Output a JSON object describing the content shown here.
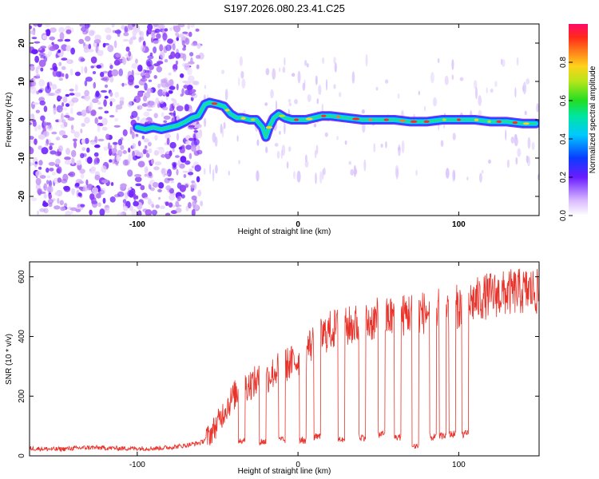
{
  "title": "S197.2026.080.23.41.C25",
  "colors": {
    "snr_line": "#e8322a",
    "speckle": "#7a2ef0",
    "frame": "#000000"
  },
  "chart_data": [
    {
      "type": "heatmap",
      "name": "spectrogram",
      "xlabel": "Height of straight line (km)",
      "ylabel": "Frequency (Hz)",
      "xlim": [
        -167,
        150
      ],
      "ylim": [
        -25,
        25
      ],
      "x_ticks": [
        -100,
        0,
        100
      ],
      "y_ticks": [
        20,
        10,
        0,
        -10,
        -20
      ],
      "noise_region_x": [
        -167,
        -60
      ],
      "ridge": {
        "description": "frequency vs height of dominant signal",
        "x": [
          -100,
          -95,
          -90,
          -85,
          -80,
          -75,
          -70,
          -66,
          -62,
          -58,
          -55,
          -50,
          -46,
          -42,
          -38,
          -35,
          -30,
          -26,
          -22,
          -20,
          -18,
          -15,
          -12,
          -8,
          -4,
          0,
          5,
          10,
          15,
          20,
          30,
          40,
          50,
          60,
          70,
          80,
          90,
          100,
          110,
          120,
          130,
          140,
          148
        ],
        "y": [
          -2,
          -2.5,
          -2,
          -2.5,
          -2,
          -1.5,
          -0.5,
          0.5,
          1,
          4,
          4.5,
          4,
          3.5,
          1.5,
          0.5,
          0.5,
          0,
          0,
          -2,
          -4.5,
          -2,
          0.5,
          1.5,
          0.5,
          0,
          0,
          0,
          0.5,
          1,
          1,
          0.5,
          0,
          0,
          0,
          -0.5,
          -0.5,
          0,
          0,
          0,
          -0.5,
          -0.5,
          -1,
          -1
        ]
      },
      "colorbar": {
        "label": "Normalized spectral amplitude",
        "range": [
          0,
          1
        ],
        "ticks": [
          0.0,
          0.2,
          0.4,
          0.6,
          0.8
        ]
      }
    },
    {
      "type": "line",
      "name": "snr",
      "xlabel": "Height of straight line (km)",
      "ylabel": "SNR (10 * v/v)",
      "xlim": [
        -167,
        150
      ],
      "ylim": [
        0,
        650
      ],
      "x_ticks": [
        -100,
        0,
        100
      ],
      "y_ticks": [
        0,
        200,
        400,
        600
      ],
      "series": [
        {
          "name": "SNR",
          "x": [
            -167,
            -150,
            -130,
            -110,
            -90,
            -80,
            -70,
            -65,
            -60,
            -55,
            -50,
            -45,
            -40,
            -35,
            -30,
            -25,
            -20,
            -15,
            -10,
            -5,
            0,
            5,
            10,
            15,
            20,
            25,
            30,
            35,
            40,
            45,
            50,
            55,
            60,
            65,
            70,
            75,
            80,
            85,
            90,
            95,
            100,
            105,
            110,
            115,
            120,
            125,
            130,
            135,
            140,
            145,
            150
          ],
          "y": [
            25,
            22,
            28,
            25,
            25,
            28,
            35,
            40,
            45,
            70,
            110,
            160,
            200,
            230,
            240,
            250,
            260,
            280,
            300,
            310,
            320,
            360,
            380,
            400,
            420,
            430,
            430,
            440,
            440,
            450,
            460,
            460,
            470,
            470,
            480,
            480,
            480,
            485,
            490,
            500,
            500,
            510,
            520,
            530,
            540,
            540,
            545,
            550,
            550,
            555,
            545
          ]
        }
      ],
      "dropouts": [
        {
          "x": -35,
          "y": 40
        },
        {
          "x": -22,
          "y": 35
        },
        {
          "x": -10,
          "y": 40
        },
        {
          "x": 3,
          "y": 40
        },
        {
          "x": 12,
          "y": 50
        },
        {
          "x": 27,
          "y": 45
        },
        {
          "x": 40,
          "y": 50
        },
        {
          "x": 52,
          "y": 60
        },
        {
          "x": 62,
          "y": 50
        },
        {
          "x": 73,
          "y": 20
        },
        {
          "x": 84,
          "y": 50
        },
        {
          "x": 90,
          "y": 55
        },
        {
          "x": 96,
          "y": 60
        },
        {
          "x": 104,
          "y": 60
        }
      ]
    }
  ]
}
